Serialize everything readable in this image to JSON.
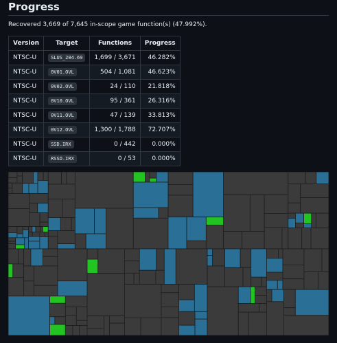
{
  "header": {
    "title": "Progress"
  },
  "summary": "Recovered 3,669 of 7,645 in-scope game function(s) (47.992%).",
  "table": {
    "columns": [
      "Version",
      "Target",
      "Functions",
      "Progress"
    ],
    "rows": [
      [
        "NTSC-U",
        "SLUS_204.69",
        "1,699 / 3,671",
        "46.282%"
      ],
      [
        "NTSC-U",
        "0V01.OVL",
        "504 / 1,081",
        "46.623%"
      ],
      [
        "NTSC-U",
        "0V02.OVL",
        "24 / 110",
        "21.818%"
      ],
      [
        "NTSC-U",
        "0V10.OVL",
        "95 / 361",
        "26.316%"
      ],
      [
        "NTSC-U",
        "0V11.OVL",
        "47 / 139",
        "33.813%"
      ],
      [
        "NTSC-U",
        "0V12.OVL",
        "1,300 / 1,788",
        "72.707%"
      ],
      [
        "NTSC-U",
        "SSD.IRX",
        "0 / 442",
        "0.000%"
      ],
      [
        "NTSC-U",
        "RSSD.IRX",
        "0 / 53",
        "0.000%"
      ]
    ]
  }
}
